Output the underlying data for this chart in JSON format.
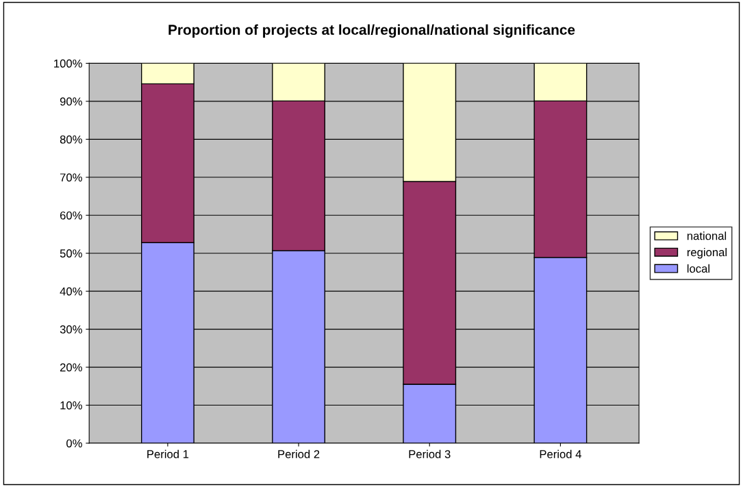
{
  "chart_data": {
    "type": "bar",
    "title": "Proportion of projects at local/regional/national significance",
    "categories": [
      "Period 1",
      "Period 2",
      "Period 3",
      "Period 4"
    ],
    "stacked": true,
    "series": [
      {
        "name": "local",
        "color": "#9999ff",
        "values": [
          52.8,
          50.7,
          15.5,
          48.9
        ]
      },
      {
        "name": "regional",
        "color": "#993366",
        "values": [
          41.8,
          39.4,
          53.4,
          41.2
        ]
      },
      {
        "name": "national",
        "color": "#ffffcc",
        "values": [
          5.4,
          9.9,
          31.1,
          9.9
        ]
      }
    ],
    "ylim": [
      0,
      100
    ],
    "yticks": [
      {
        "value": 0,
        "label": "0%"
      },
      {
        "value": 10,
        "label": "10%"
      },
      {
        "value": 20,
        "label": "20%"
      },
      {
        "value": 30,
        "label": "30%"
      },
      {
        "value": 40,
        "label": "40%"
      },
      {
        "value": 50,
        "label": "50%"
      },
      {
        "value": 60,
        "label": "60%"
      },
      {
        "value": 70,
        "label": "70%"
      },
      {
        "value": 80,
        "label": "80%"
      },
      {
        "value": 90,
        "label": "90%"
      },
      {
        "value": 100,
        "label": "100%"
      }
    ],
    "grid": "y",
    "legend": "right"
  }
}
